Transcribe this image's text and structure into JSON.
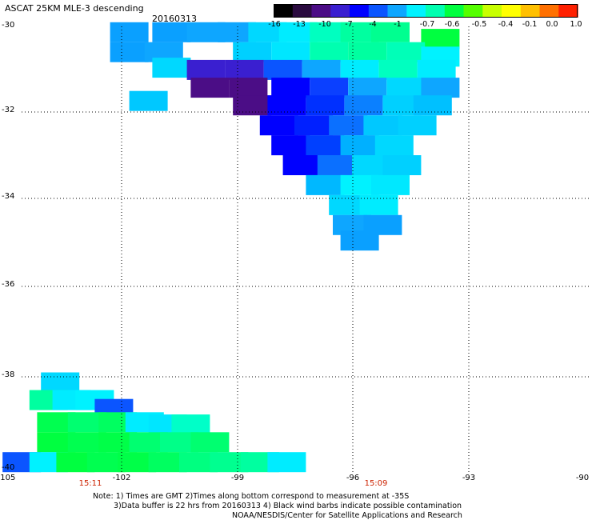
{
  "title": "ASCAT 25KM MLE-3 descending",
  "date": "20160313",
  "colorbar": {
    "labels": [
      "-16",
      "-13",
      "-10",
      "-7",
      "-4",
      "-1",
      "-0.7",
      "-0.6",
      "-0.5",
      "-0.4",
      "-0.1",
      "0.0",
      "1.0"
    ],
    "colors": [
      "#000000",
      "#2a0b3f",
      "#4b0d86",
      "#3a1fd0",
      "#0000ff",
      "#0b55ff",
      "#0ea6ff",
      "#00f2ff",
      "#00ffb0",
      "#00ff40",
      "#55ff00",
      "#c8ff00",
      "#ffff00",
      "#ffc000",
      "#ff7000",
      "#ff2000"
    ]
  },
  "lat_labels": [
    "-30",
    "-32",
    "-34",
    "-36",
    "-38",
    "-40"
  ],
  "lon_labels": [
    "-105",
    "-102",
    "-99",
    "-96",
    "-93",
    "-90"
  ],
  "time_labels": [
    "15:11",
    "15:09"
  ],
  "notes": [
    "Note: 1) Times are GMT 2)Times along bottom correspond to measurement at -35S",
    "3)Data buffer is 22 hrs from 20160313 4) Black wind barbs indicate possible contamination",
    "NOAA/NESDIS/Center for Satellite Applications and Research"
  ],
  "map_data": {
    "region": {
      "lon_min": -105,
      "lon_max": -90,
      "lat_min": -40,
      "lat_max": -30
    },
    "swaths": [
      {
        "name": "northern",
        "cells": [
          {
            "lon": -101.8,
            "lat": -30.15,
            "c": "#0aa0ff"
          },
          {
            "lon": -100.7,
            "lat": -30.15,
            "c": "#0aa0ff"
          },
          {
            "lon": -99.8,
            "lat": -30.15,
            "c": "#0ea6ff"
          },
          {
            "lon": -99.0,
            "lat": -30.15,
            "c": "#0ea6ff"
          },
          {
            "lon": -98.2,
            "lat": -30.15,
            "c": "#00d8ff"
          },
          {
            "lon": -97.4,
            "lat": -30.15,
            "c": "#00ecff"
          },
          {
            "lon": -96.6,
            "lat": -30.15,
            "c": "#00ffc0"
          },
          {
            "lon": -95.8,
            "lat": -30.15,
            "c": "#00ffa0"
          },
          {
            "lon": -95.0,
            "lat": -30.15,
            "c": "#00ff90"
          },
          {
            "lon": -93.7,
            "lat": -30.3,
            "c": "#00ff40"
          },
          {
            "lon": -101.8,
            "lat": -30.6,
            "c": "#0aa0ff"
          },
          {
            "lon": -100.9,
            "lat": -30.6,
            "c": "#0ea6ff"
          },
          {
            "lon": -98.6,
            "lat": -30.6,
            "c": "#00d0ff"
          },
          {
            "lon": -97.6,
            "lat": -30.6,
            "c": "#00e6ff"
          },
          {
            "lon": -96.6,
            "lat": -30.6,
            "c": "#00ffb0"
          },
          {
            "lon": -95.6,
            "lat": -30.6,
            "c": "#00ffa0"
          },
          {
            "lon": -94.6,
            "lat": -30.6,
            "c": "#00ffb8"
          },
          {
            "lon": -93.7,
            "lat": -30.7,
            "c": "#00f2ff"
          },
          {
            "lon": -100.7,
            "lat": -30.95,
            "c": "#00d8ff"
          },
          {
            "lon": -99.8,
            "lat": -31.0,
            "c": "#3a1fd0"
          },
          {
            "lon": -98.8,
            "lat": -31.0,
            "c": "#3a1fd0"
          },
          {
            "lon": -97.8,
            "lat": -31.0,
            "c": "#0b55ff"
          },
          {
            "lon": -96.8,
            "lat": -31.0,
            "c": "#0ea6ff"
          },
          {
            "lon": -95.8,
            "lat": -31.0,
            "c": "#00ecff"
          },
          {
            "lon": -94.8,
            "lat": -31.0,
            "c": "#00ffc0"
          },
          {
            "lon": -93.8,
            "lat": -31.0,
            "c": "#00ecff"
          },
          {
            "lon": -99.7,
            "lat": -31.4,
            "c": "#4b0d86"
          },
          {
            "lon": -98.7,
            "lat": -31.4,
            "c": "#4b0d86"
          },
          {
            "lon": -97.6,
            "lat": -31.4,
            "c": "#0000ff"
          },
          {
            "lon": -96.6,
            "lat": -31.4,
            "c": "#0b40ff"
          },
          {
            "lon": -95.6,
            "lat": -31.4,
            "c": "#0ea6ff"
          },
          {
            "lon": -94.6,
            "lat": -31.4,
            "c": "#00d8ff"
          },
          {
            "lon": -93.7,
            "lat": -31.4,
            "c": "#0ea6ff"
          },
          {
            "lon": -101.3,
            "lat": -31.7,
            "c": "#00c8ff"
          },
          {
            "lon": -98.6,
            "lat": -31.8,
            "c": "#4b0d86"
          },
          {
            "lon": -97.7,
            "lat": -31.8,
            "c": "#0000ff"
          },
          {
            "lon": -96.7,
            "lat": -31.8,
            "c": "#0030ff"
          },
          {
            "lon": -95.7,
            "lat": -31.8,
            "c": "#0b80ff"
          },
          {
            "lon": -94.7,
            "lat": -31.8,
            "c": "#00d0ff"
          },
          {
            "lon": -93.9,
            "lat": -31.8,
            "c": "#00c0ff"
          },
          {
            "lon": -97.9,
            "lat": -32.25,
            "c": "#0000ff"
          },
          {
            "lon": -97.0,
            "lat": -32.25,
            "c": "#0020ff"
          },
          {
            "lon": -96.1,
            "lat": -32.25,
            "c": "#0b70ff"
          },
          {
            "lon": -95.2,
            "lat": -32.25,
            "c": "#00c8ff"
          },
          {
            "lon": -94.3,
            "lat": -32.25,
            "c": "#00d0ff"
          },
          {
            "lon": -97.6,
            "lat": -32.7,
            "c": "#0000ff"
          },
          {
            "lon": -96.7,
            "lat": -32.7,
            "c": "#0040ff"
          },
          {
            "lon": -95.8,
            "lat": -32.7,
            "c": "#00b0ff"
          },
          {
            "lon": -94.9,
            "lat": -32.7,
            "c": "#00d8ff"
          },
          {
            "lon": -97.3,
            "lat": -33.15,
            "c": "#0000ff"
          },
          {
            "lon": -96.4,
            "lat": -33.15,
            "c": "#0b70ff"
          },
          {
            "lon": -95.5,
            "lat": -33.15,
            "c": "#00d8ff"
          },
          {
            "lon": -94.7,
            "lat": -33.15,
            "c": "#00d0ff"
          },
          {
            "lon": -96.7,
            "lat": -33.6,
            "c": "#00b8ff"
          },
          {
            "lon": -95.8,
            "lat": -33.6,
            "c": "#00f2ff"
          },
          {
            "lon": -95.0,
            "lat": -33.6,
            "c": "#00e8ff"
          },
          {
            "lon": -96.1,
            "lat": -34.05,
            "c": "#00d8ff"
          },
          {
            "lon": -95.3,
            "lat": -34.05,
            "c": "#00ecff"
          },
          {
            "lon": -96.0,
            "lat": -34.5,
            "c": "#0ea6ff"
          },
          {
            "lon": -95.2,
            "lat": -34.5,
            "c": "#0aa0ff"
          },
          {
            "lon": -95.8,
            "lat": -34.85,
            "c": "#0aa0ff"
          }
        ]
      },
      {
        "name": "southern",
        "cells": [
          {
            "lon": -103.6,
            "lat": -38.05,
            "c": "#00d8ff"
          },
          {
            "lon": -103.9,
            "lat": -38.45,
            "c": "#00ffa0"
          },
          {
            "lon": -103.3,
            "lat": -38.45,
            "c": "#00ecff"
          },
          {
            "lon": -102.7,
            "lat": -38.45,
            "c": "#00f2ff"
          },
          {
            "lon": -102.2,
            "lat": -38.65,
            "c": "#0b55ff"
          },
          {
            "lon": -103.7,
            "lat": -38.95,
            "c": "#00ff50"
          },
          {
            "lon": -102.9,
            "lat": -38.95,
            "c": "#00ff70"
          },
          {
            "lon": -102.1,
            "lat": -38.95,
            "c": "#00ff60"
          },
          {
            "lon": -101.4,
            "lat": -38.95,
            "c": "#00ecff"
          },
          {
            "lon": -100.8,
            "lat": -39.0,
            "c": "#00e6ff"
          },
          {
            "lon": -100.2,
            "lat": -39.0,
            "c": "#00ffc8"
          },
          {
            "lon": -103.7,
            "lat": -39.4,
            "c": "#00ff40"
          },
          {
            "lon": -102.9,
            "lat": -39.4,
            "c": "#00ff50"
          },
          {
            "lon": -102.1,
            "lat": -39.4,
            "c": "#00ff48"
          },
          {
            "lon": -101.3,
            "lat": -39.4,
            "c": "#00ff70"
          },
          {
            "lon": -100.5,
            "lat": -39.4,
            "c": "#00ff88"
          },
          {
            "lon": -99.7,
            "lat": -39.4,
            "c": "#00ff70"
          },
          {
            "lon": -104.6,
            "lat": -39.85,
            "c": "#0b55ff"
          },
          {
            "lon": -103.9,
            "lat": -39.85,
            "c": "#00f2ff"
          },
          {
            "lon": -103.2,
            "lat": -39.85,
            "c": "#00ff40"
          },
          {
            "lon": -102.4,
            "lat": -39.85,
            "c": "#00ff50"
          },
          {
            "lon": -101.6,
            "lat": -39.85,
            "c": "#00ff48"
          },
          {
            "lon": -100.8,
            "lat": -39.85,
            "c": "#00ff60"
          },
          {
            "lon": -100.0,
            "lat": -39.85,
            "c": "#00ff80"
          },
          {
            "lon": -99.2,
            "lat": -39.85,
            "c": "#00ff90"
          },
          {
            "lon": -98.4,
            "lat": -39.85,
            "c": "#00ffa0"
          },
          {
            "lon": -97.7,
            "lat": -39.85,
            "c": "#00ecff"
          }
        ]
      }
    ]
  }
}
